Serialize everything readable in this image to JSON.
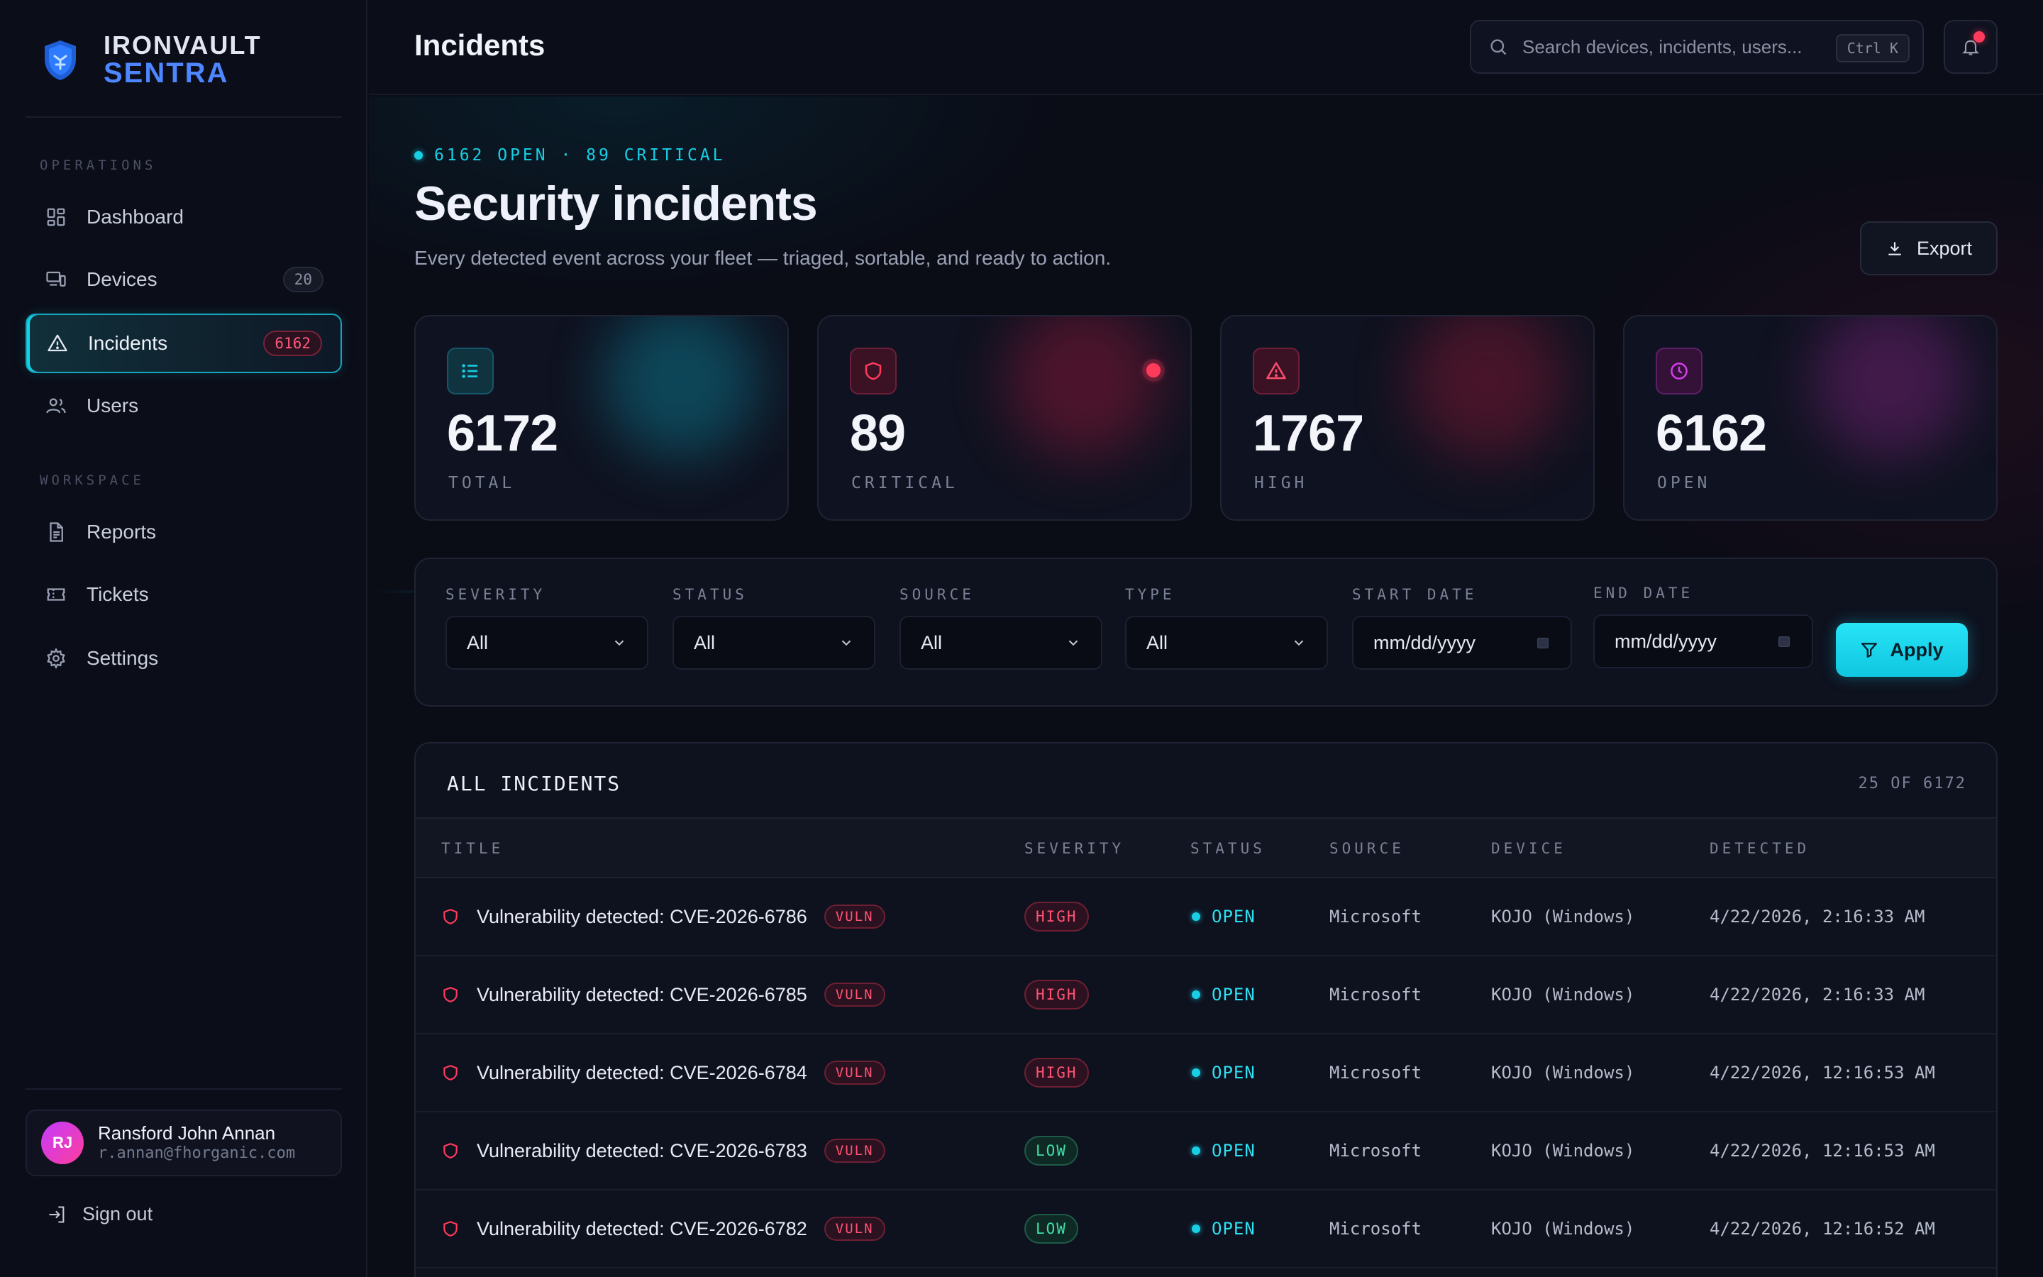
{
  "brand": {
    "line1": "IRONVAULT",
    "line2": "SENTRA"
  },
  "sidebar": {
    "sections": [
      {
        "label": "OPERATIONS",
        "items": [
          {
            "label": "Dashboard",
            "icon": "dashboard-icon",
            "badge": null,
            "active": false
          },
          {
            "label": "Devices",
            "icon": "devices-icon",
            "badge": "20",
            "active": false
          },
          {
            "label": "Incidents",
            "icon": "alert-triangle-icon",
            "badge": "6162",
            "active": true
          },
          {
            "label": "Users",
            "icon": "users-icon",
            "badge": null,
            "active": false
          }
        ]
      },
      {
        "label": "WORKSPACE",
        "items": [
          {
            "label": "Reports",
            "icon": "file-text-icon",
            "badge": null,
            "active": false
          },
          {
            "label": "Tickets",
            "icon": "ticket-icon",
            "badge": null,
            "active": false
          },
          {
            "label": "Settings",
            "icon": "gear-icon",
            "badge": null,
            "active": false
          }
        ]
      }
    ],
    "user": {
      "initials": "RJ",
      "name": "Ransford John Annan",
      "email": "r.annan@fhorganic.com"
    },
    "signout_label": "Sign out"
  },
  "header": {
    "title": "Incidents",
    "search_placeholder": "Search devices, incidents, users...",
    "search_shortcut": "Ctrl K"
  },
  "hero": {
    "eyebrow": "6162 OPEN · 89 CRITICAL",
    "title": "Security incidents",
    "subtitle": "Every detected event across your fleet — triaged, sortable, and ready to action.",
    "export_label": "Export"
  },
  "stats": [
    {
      "value": "6172",
      "label": "TOTAL",
      "icon": "list-icon",
      "accent": "#18cfe6"
    },
    {
      "value": "89",
      "label": "CRITICAL",
      "icon": "shield-icon",
      "accent": "#ff3b5c"
    },
    {
      "value": "1767",
      "label": "HIGH",
      "icon": "alert-triangle-icon",
      "accent": "#ff4d6d"
    },
    {
      "value": "6162",
      "label": "OPEN",
      "icon": "clock-icon",
      "accent": "#d63cf0"
    }
  ],
  "filters": {
    "severity": {
      "label": "SEVERITY",
      "value": "All"
    },
    "status": {
      "label": "STATUS",
      "value": "All"
    },
    "source": {
      "label": "SOURCE",
      "value": "All"
    },
    "type": {
      "label": "TYPE",
      "value": "All"
    },
    "start_date": {
      "label": "START DATE",
      "value": "mm/dd/yyyy"
    },
    "end_date": {
      "label": "END DATE",
      "value": "mm/dd/yyyy"
    },
    "apply_label": "Apply"
  },
  "table": {
    "title": "ALL INCIDENTS",
    "count": "25 OF 6172",
    "columns": {
      "title": "TITLE",
      "severity": "SEVERITY",
      "status": "STATUS",
      "source": "SOURCE",
      "device": "DEVICE",
      "detected": "DETECTED"
    },
    "rows": [
      {
        "title": "Vulnerability detected: CVE-2026-6786",
        "tag": "VULN",
        "severity": "HIGH",
        "status": "OPEN",
        "source": "Microsoft",
        "device": "KOJO (Windows)",
        "detected": "4/22/2026, 2:16:33 AM"
      },
      {
        "title": "Vulnerability detected: CVE-2026-6785",
        "tag": "VULN",
        "severity": "HIGH",
        "status": "OPEN",
        "source": "Microsoft",
        "device": "KOJO (Windows)",
        "detected": "4/22/2026, 2:16:33 AM"
      },
      {
        "title": "Vulnerability detected: CVE-2026-6784",
        "tag": "VULN",
        "severity": "HIGH",
        "status": "OPEN",
        "source": "Microsoft",
        "device": "KOJO (Windows)",
        "detected": "4/22/2026, 12:16:53 AM"
      },
      {
        "title": "Vulnerability detected: CVE-2026-6783",
        "tag": "VULN",
        "severity": "LOW",
        "status": "OPEN",
        "source": "Microsoft",
        "device": "KOJO (Windows)",
        "detected": "4/22/2026, 12:16:53 AM"
      },
      {
        "title": "Vulnerability detected: CVE-2026-6782",
        "tag": "VULN",
        "severity": "LOW",
        "status": "OPEN",
        "source": "Microsoft",
        "device": "KOJO (Windows)",
        "detected": "4/22/2026, 12:16:52 AM"
      }
    ]
  }
}
